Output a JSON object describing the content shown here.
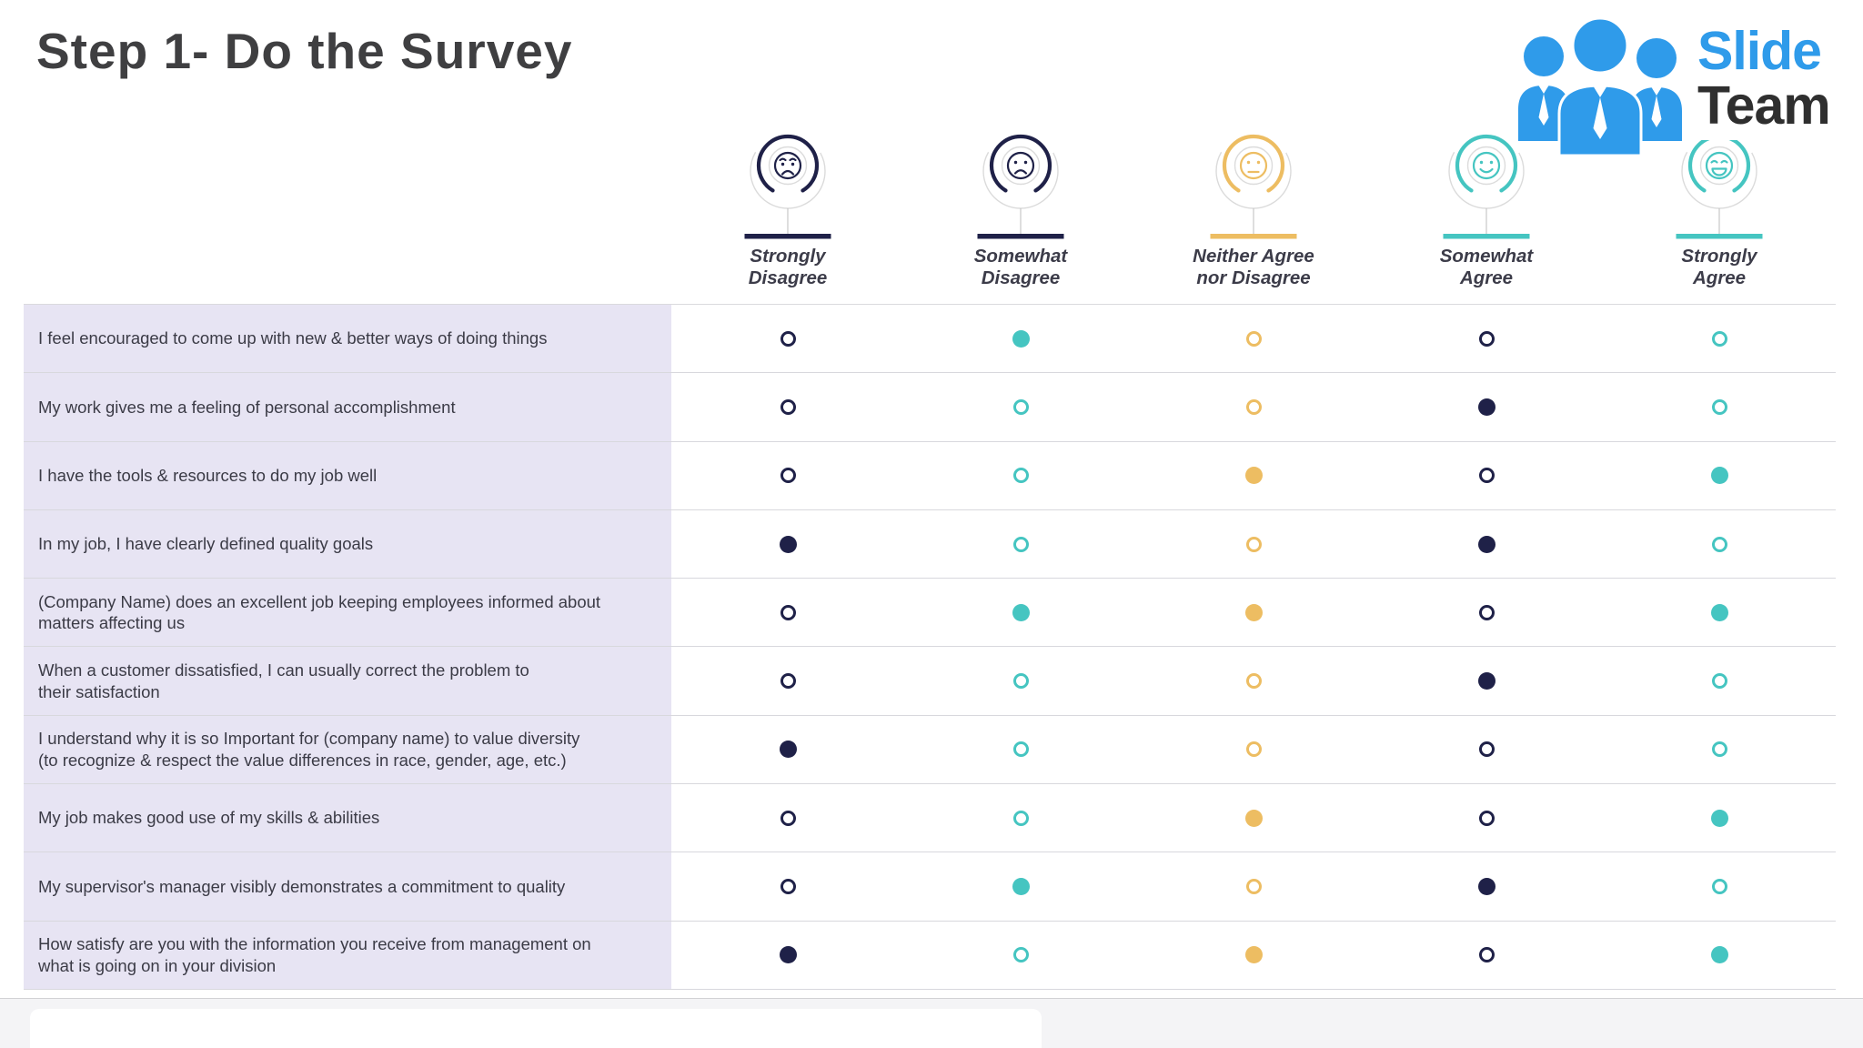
{
  "slide": {
    "title": "Step 1- Do the Survey"
  },
  "logo": {
    "brand_part1": "Slide",
    "brand_part2": "Team",
    "icon": "team-people-icon",
    "blue": "#2F9BEA",
    "dark": "#2F2F2F"
  },
  "colors": {
    "navy": "#1F2148",
    "teal": "#45C5C1",
    "yellow": "#EDBD62",
    "question_bg": "#E7E4F3",
    "row_border": "#D8D8DD",
    "text_dark": "#3B3B46"
  },
  "rating_scale": [
    {
      "key": "strongly-disagree",
      "label": "Strongly\nDisagree",
      "face": "worried-face-icon",
      "color": "navy",
      "dot_color": "navy"
    },
    {
      "key": "somewhat-disagree",
      "label": "Somewhat\nDisagree",
      "face": "sad-face-icon",
      "color": "navy",
      "dot_color": "teal"
    },
    {
      "key": "neither-agree-nor-disagree",
      "label": "Neither Agree\nnor Disagree",
      "face": "neutral-face-icon",
      "color": "yellow",
      "dot_color": "yellow"
    },
    {
      "key": "somewhat-agree",
      "label": "Somewhat\nAgree",
      "face": "smile-face-icon",
      "color": "teal",
      "dot_color": "navy"
    },
    {
      "key": "strongly-agree",
      "label": "Strongly\nAgree",
      "face": "grin-face-icon",
      "color": "teal",
      "dot_color": "teal"
    }
  ],
  "survey": {
    "rows": [
      {
        "question": "I feel encouraged to come up with new & better ways of doing things",
        "selections": [
          false,
          true,
          false,
          false,
          false
        ]
      },
      {
        "question": "My work gives me a feeling of personal accomplishment",
        "selections": [
          false,
          false,
          false,
          true,
          false
        ]
      },
      {
        "question": "I have the tools & resources to do my job well",
        "selections": [
          false,
          false,
          true,
          false,
          true
        ]
      },
      {
        "question": "In my job, I have clearly defined quality goals",
        "selections": [
          true,
          false,
          false,
          true,
          false
        ]
      },
      {
        "question": "(Company Name) does an excellent job keeping employees informed about\nmatters affecting us",
        "selections": [
          false,
          true,
          true,
          false,
          true
        ]
      },
      {
        "question": "When a customer dissatisfied, I can usually correct the problem to\ntheir satisfaction",
        "selections": [
          false,
          false,
          false,
          true,
          false
        ]
      },
      {
        "question": "I understand why it is so Important for (company name) to value diversity\n(to recognize & respect the value differences in race, gender, age, etc.)",
        "selections": [
          true,
          false,
          false,
          false,
          false
        ]
      },
      {
        "question": "My job makes good use of my skills & abilities",
        "selections": [
          false,
          false,
          true,
          false,
          true
        ]
      },
      {
        "question": "My supervisor's manager visibly demonstrates a commitment to quality",
        "selections": [
          false,
          true,
          false,
          true,
          false
        ]
      },
      {
        "question": "How satisfy are you with the information you receive from management on\nwhat is going on in your division",
        "selections": [
          true,
          false,
          true,
          false,
          true
        ]
      }
    ]
  }
}
